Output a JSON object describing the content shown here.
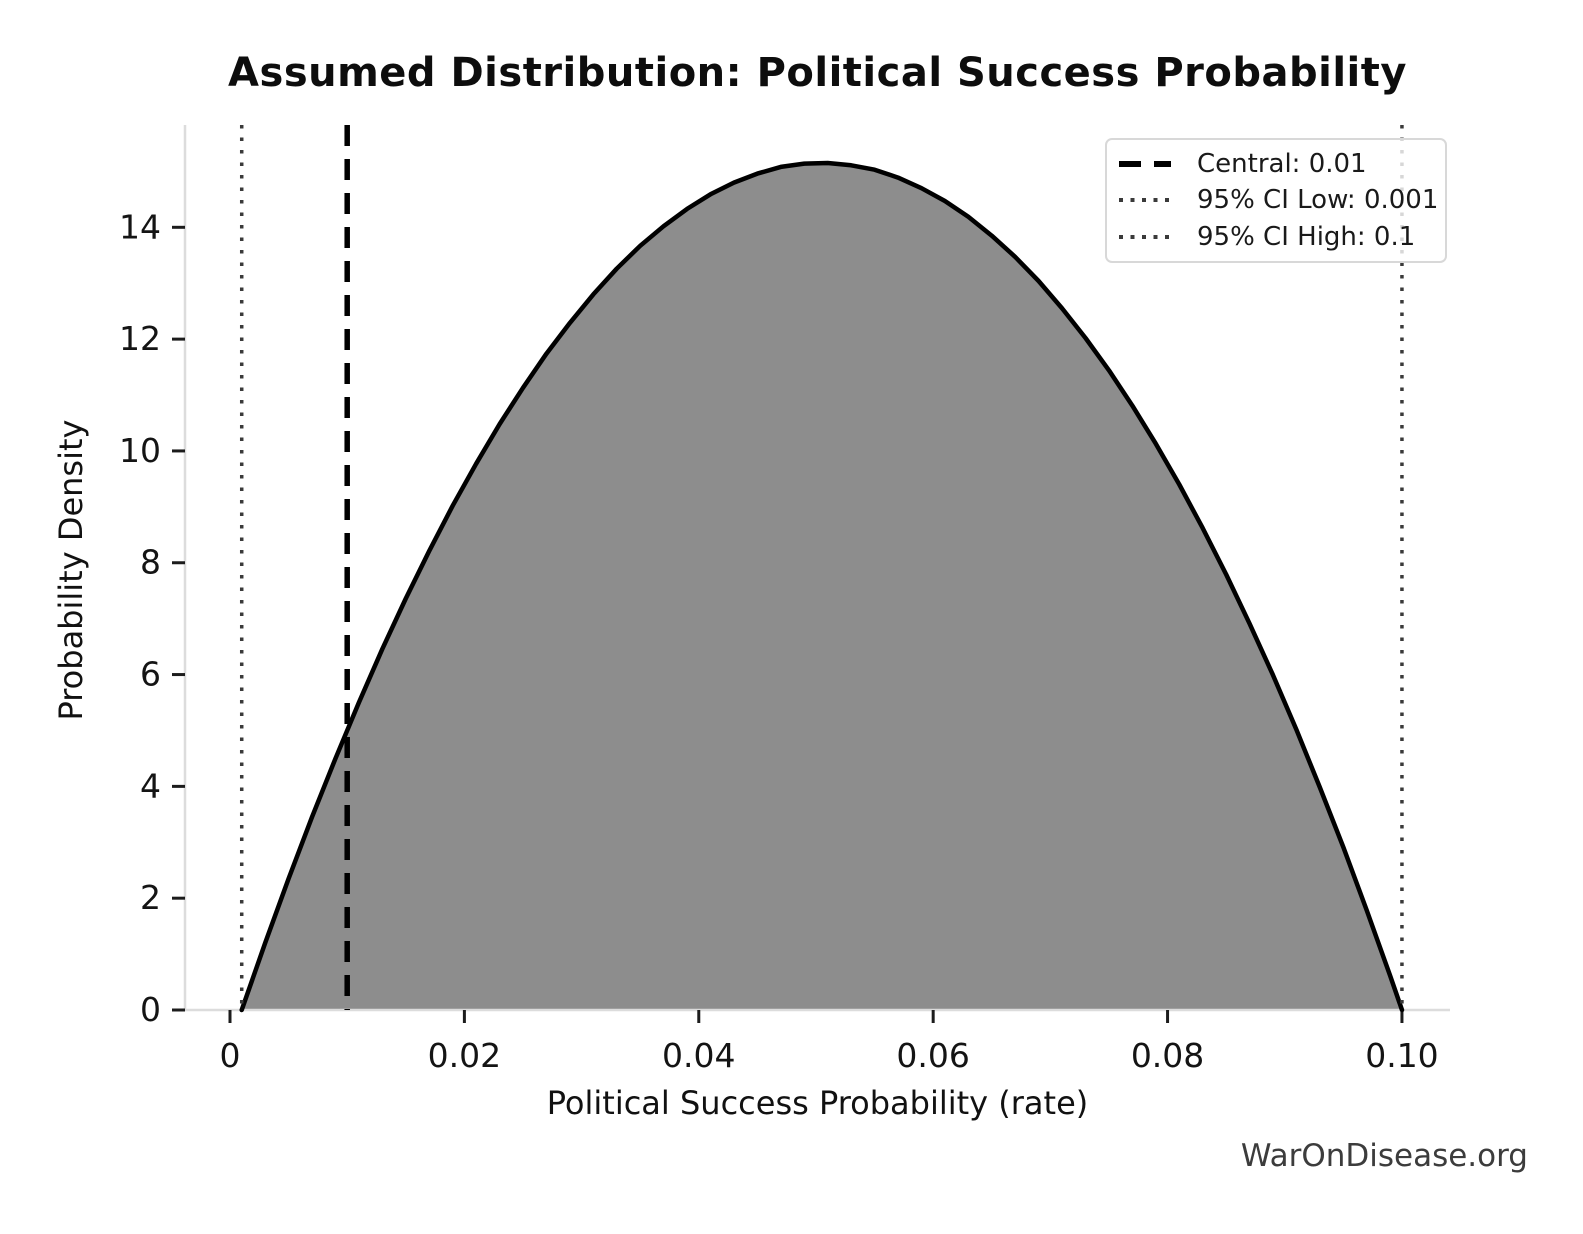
{
  "page": {
    "background": "#ffffff",
    "watermark": "WarOnDisease.org"
  },
  "chart_data": {
    "type": "area",
    "title": "Assumed Distribution: Political Success Probability",
    "xlabel": "Political Success Probability (rate)",
    "ylabel": "Probability Density",
    "xlim": [
      -0.00384,
      0.1041
    ],
    "ylim": [
      0,
      15.83
    ],
    "grid": false,
    "legend_position": "upper right",
    "x_ticks": {
      "values": [
        0,
        0.02,
        0.04,
        0.06,
        0.08,
        0.1
      ],
      "labels": [
        "0",
        "0.02",
        "0.04",
        "0.06",
        "0.08",
        "0.10"
      ]
    },
    "y_ticks": {
      "values": [
        0,
        2,
        4,
        6,
        8,
        10,
        12,
        14
      ],
      "labels": [
        "0",
        "2",
        "4",
        "6",
        "8",
        "10",
        "12",
        "14"
      ]
    },
    "series": [
      {
        "name": "probability-density",
        "fill_color": "#8d8d8d",
        "line_color": "#000000",
        "x": [
          0.001,
          0.003,
          0.005,
          0.007,
          0.009,
          0.011,
          0.013,
          0.015,
          0.017,
          0.019,
          0.021,
          0.023,
          0.025,
          0.027,
          0.029,
          0.031,
          0.033,
          0.035,
          0.037,
          0.039,
          0.041,
          0.043,
          0.045,
          0.047,
          0.049,
          0.051,
          0.053,
          0.055,
          0.057,
          0.059,
          0.061,
          0.063,
          0.065,
          0.067,
          0.069,
          0.071,
          0.073,
          0.075,
          0.077,
          0.079,
          0.081,
          0.083,
          0.085,
          0.087,
          0.089,
          0.091,
          0.093,
          0.095,
          0.097,
          0.099,
          0.1
        ],
        "y": [
          0,
          1.2,
          2.35,
          3.45,
          4.5,
          5.5,
          6.46,
          7.36,
          8.21,
          9.02,
          9.77,
          10.48,
          11.13,
          11.74,
          12.29,
          12.8,
          13.26,
          13.67,
          14.02,
          14.33,
          14.59,
          14.8,
          14.96,
          15.08,
          15.14,
          15.15,
          15.11,
          15.03,
          14.89,
          14.7,
          14.47,
          14.19,
          13.85,
          13.47,
          13.04,
          12.55,
          12.02,
          11.44,
          10.81,
          10.13,
          9.4,
          8.62,
          7.79,
          6.91,
          5.99,
          5.01,
          3.98,
          2.91,
          1.78,
          0.61,
          0
        ]
      }
    ],
    "vlines": [
      {
        "x": 0.01,
        "label": "Central: 0.01",
        "style": "dashed",
        "color": "#000000"
      },
      {
        "x": 0.001,
        "label": "95% CI Low: 0.001",
        "style": "dotted",
        "color": "#3a3a3a"
      },
      {
        "x": 0.1,
        "label": "95% CI High: 0.1",
        "style": "dotted",
        "color": "#3a3a3a"
      }
    ],
    "style": {
      "spine_color": "#dcdcdc",
      "tick_color": "#1c1c1c"
    }
  }
}
